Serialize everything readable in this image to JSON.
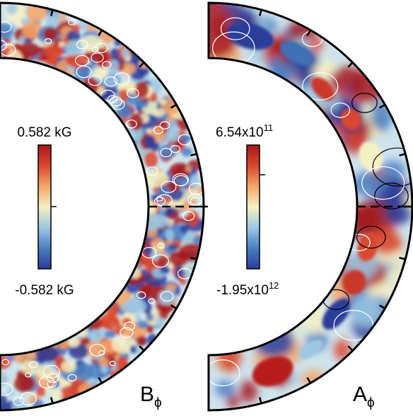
{
  "chart_data": [
    {
      "type": "heatmap",
      "projection": "meridional quarter-shell",
      "panel_label": "B",
      "panel_label_subscript": "ϕ",
      "colorbar": {
        "max_label": "0.582 kG",
        "min_label": "-0.582 kG",
        "max": 0.582,
        "min": -0.582,
        "unit": "kG",
        "colormap": [
          "#2a3d99",
          "#4a7fc2",
          "#9dc8e3",
          "#f4f0c2",
          "#f3a66b",
          "#d9462e",
          "#a7191c"
        ]
      },
      "contours": "white",
      "field_description": "small-scale toroidal field, blue/red patches distributed throughout the shell"
    },
    {
      "type": "heatmap",
      "projection": "meridional quarter-shell",
      "panel_label": "A",
      "panel_label_subscript": "ϕ",
      "colorbar": {
        "max_label": "6.54x10",
        "max_exponent": "11",
        "min_label": "-1.95x10",
        "min_exponent": "12",
        "max": 654000000000.0,
        "min": -1950000000000.0,
        "colormap": [
          "#2a3d99",
          "#4a7fc2",
          "#9dc8e3",
          "#f4f0c2",
          "#f3a66b",
          "#d9462e",
          "#a7191c"
        ]
      },
      "contours": "white and black",
      "field_description": "large-scale potential, large blue cell at high latitude, red cells near equator and bottom"
    }
  ]
}
